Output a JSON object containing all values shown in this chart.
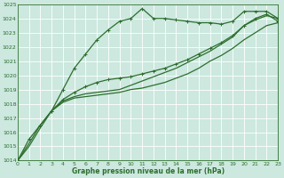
{
  "title": "Graphe pression niveau de la mer (hPa)",
  "bg_color": "#cce8df",
  "grid_color": "#b0cfc8",
  "line_color": "#2d6e2d",
  "xmin": 0,
  "xmax": 23,
  "ymin": 1014,
  "ymax": 1025,
  "yticks": [
    1014,
    1015,
    1016,
    1017,
    1018,
    1019,
    1020,
    1021,
    1022,
    1023,
    1024,
    1025
  ],
  "xticks": [
    0,
    1,
    2,
    3,
    4,
    5,
    6,
    7,
    8,
    9,
    10,
    11,
    12,
    13,
    14,
    15,
    16,
    17,
    18,
    19,
    20,
    21,
    22,
    23
  ],
  "series": [
    {
      "x": [
        0,
        1,
        2,
        3,
        4,
        5,
        6,
        7,
        8,
        9,
        10,
        11,
        12,
        13,
        14,
        15,
        16,
        17,
        18,
        19,
        20,
        21,
        22,
        23
      ],
      "y": [
        1014.0,
        1015.5,
        1016.5,
        1017.5,
        1019.0,
        1020.5,
        1021.5,
        1022.5,
        1023.2,
        1023.8,
        1024.0,
        1024.7,
        1024.0,
        1024.0,
        1023.9,
        1023.8,
        1023.7,
        1023.7,
        1023.6,
        1023.8,
        1024.5,
        1024.5,
        1024.5,
        1024.0
      ],
      "marker": true,
      "lw": 0.9
    },
    {
      "x": [
        0,
        1,
        2,
        3,
        4,
        5,
        6,
        7,
        8,
        9,
        10,
        11,
        12,
        13,
        14,
        15,
        16,
        17,
        18,
        19,
        20,
        21,
        22,
        23
      ],
      "y": [
        1014.0,
        1015.0,
        1016.3,
        1017.5,
        1018.1,
        1018.4,
        1018.5,
        1018.6,
        1018.7,
        1018.8,
        1019.0,
        1019.1,
        1019.3,
        1019.5,
        1019.8,
        1020.1,
        1020.5,
        1021.0,
        1021.4,
        1021.9,
        1022.5,
        1023.0,
        1023.5,
        1023.7
      ],
      "marker": false,
      "lw": 0.9
    },
    {
      "x": [
        0,
        1,
        2,
        3,
        4,
        5,
        6,
        7,
        8,
        9,
        10,
        11,
        12,
        13,
        14,
        15,
        16,
        17,
        18,
        19,
        20,
        21,
        22,
        23
      ],
      "y": [
        1014.0,
        1015.2,
        1016.5,
        1017.5,
        1018.2,
        1018.5,
        1018.7,
        1018.8,
        1018.9,
        1019.0,
        1019.3,
        1019.6,
        1019.9,
        1020.2,
        1020.5,
        1020.9,
        1021.3,
        1021.7,
        1022.2,
        1022.7,
        1023.5,
        1023.9,
        1024.2,
        1024.0
      ],
      "marker": false,
      "lw": 0.9
    },
    {
      "x": [
        3,
        4,
        5,
        6,
        7,
        8,
        9,
        10,
        11,
        12,
        13,
        14,
        15,
        16,
        17,
        18,
        19,
        20,
        21,
        22,
        23
      ],
      "y": [
        1017.5,
        1018.3,
        1018.8,
        1019.2,
        1019.5,
        1019.7,
        1019.8,
        1019.9,
        1020.1,
        1020.3,
        1020.5,
        1020.8,
        1021.1,
        1021.5,
        1021.9,
        1022.3,
        1022.8,
        1023.5,
        1024.0,
        1024.3,
        1023.8
      ],
      "marker": true,
      "lw": 0.9
    }
  ]
}
